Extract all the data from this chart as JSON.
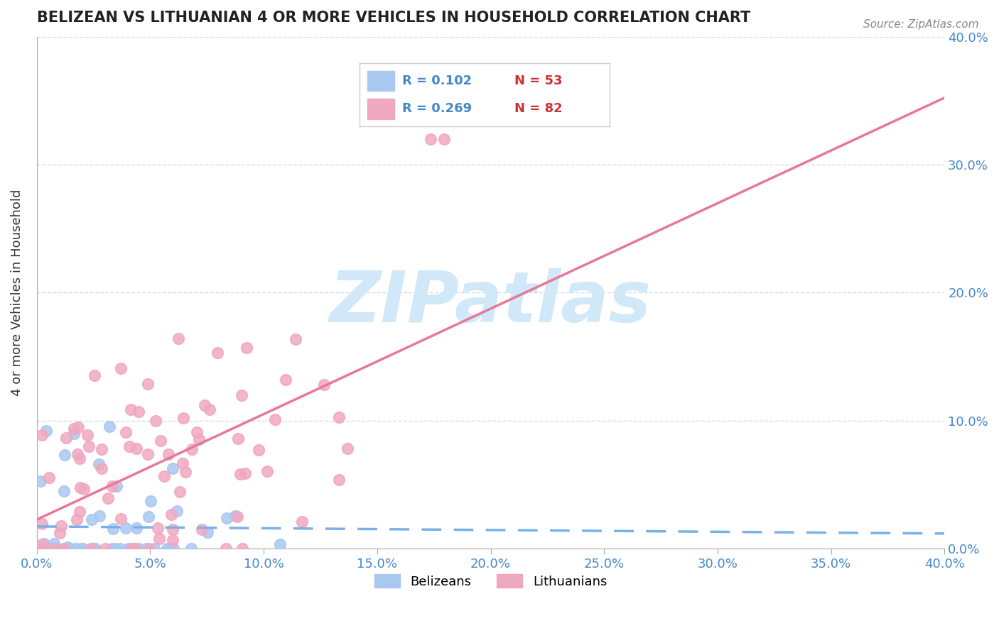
{
  "title": "BELIZEAN VS LITHUANIAN 4 OR MORE VEHICLES IN HOUSEHOLD CORRELATION CHART",
  "source_text": "Source: ZipAtlas.com",
  "ylabel_label": "4 or more Vehicles in Household",
  "xlim": [
    0.0,
    40.0
  ],
  "ylim": [
    0.0,
    40.0
  ],
  "yticks": [
    0.0,
    10.0,
    20.0,
    30.0,
    40.0
  ],
  "xticks": [
    0.0,
    5.0,
    10.0,
    15.0,
    20.0,
    25.0,
    30.0,
    35.0,
    40.0
  ],
  "belizean_R": 0.102,
  "belizean_N": 53,
  "lithuanian_R": 0.269,
  "lithuanian_N": 82,
  "belizean_color": "#a8c8f0",
  "lithuanian_color": "#f0a8c0",
  "belizean_line_color": "#7ab0e8",
  "lithuanian_line_color": "#e87898",
  "watermark_color": "#d0e8f8",
  "watermark_text": "ZIPatlas",
  "legend_R_color": "#4488cc",
  "legend_N_color": "#cc3333"
}
